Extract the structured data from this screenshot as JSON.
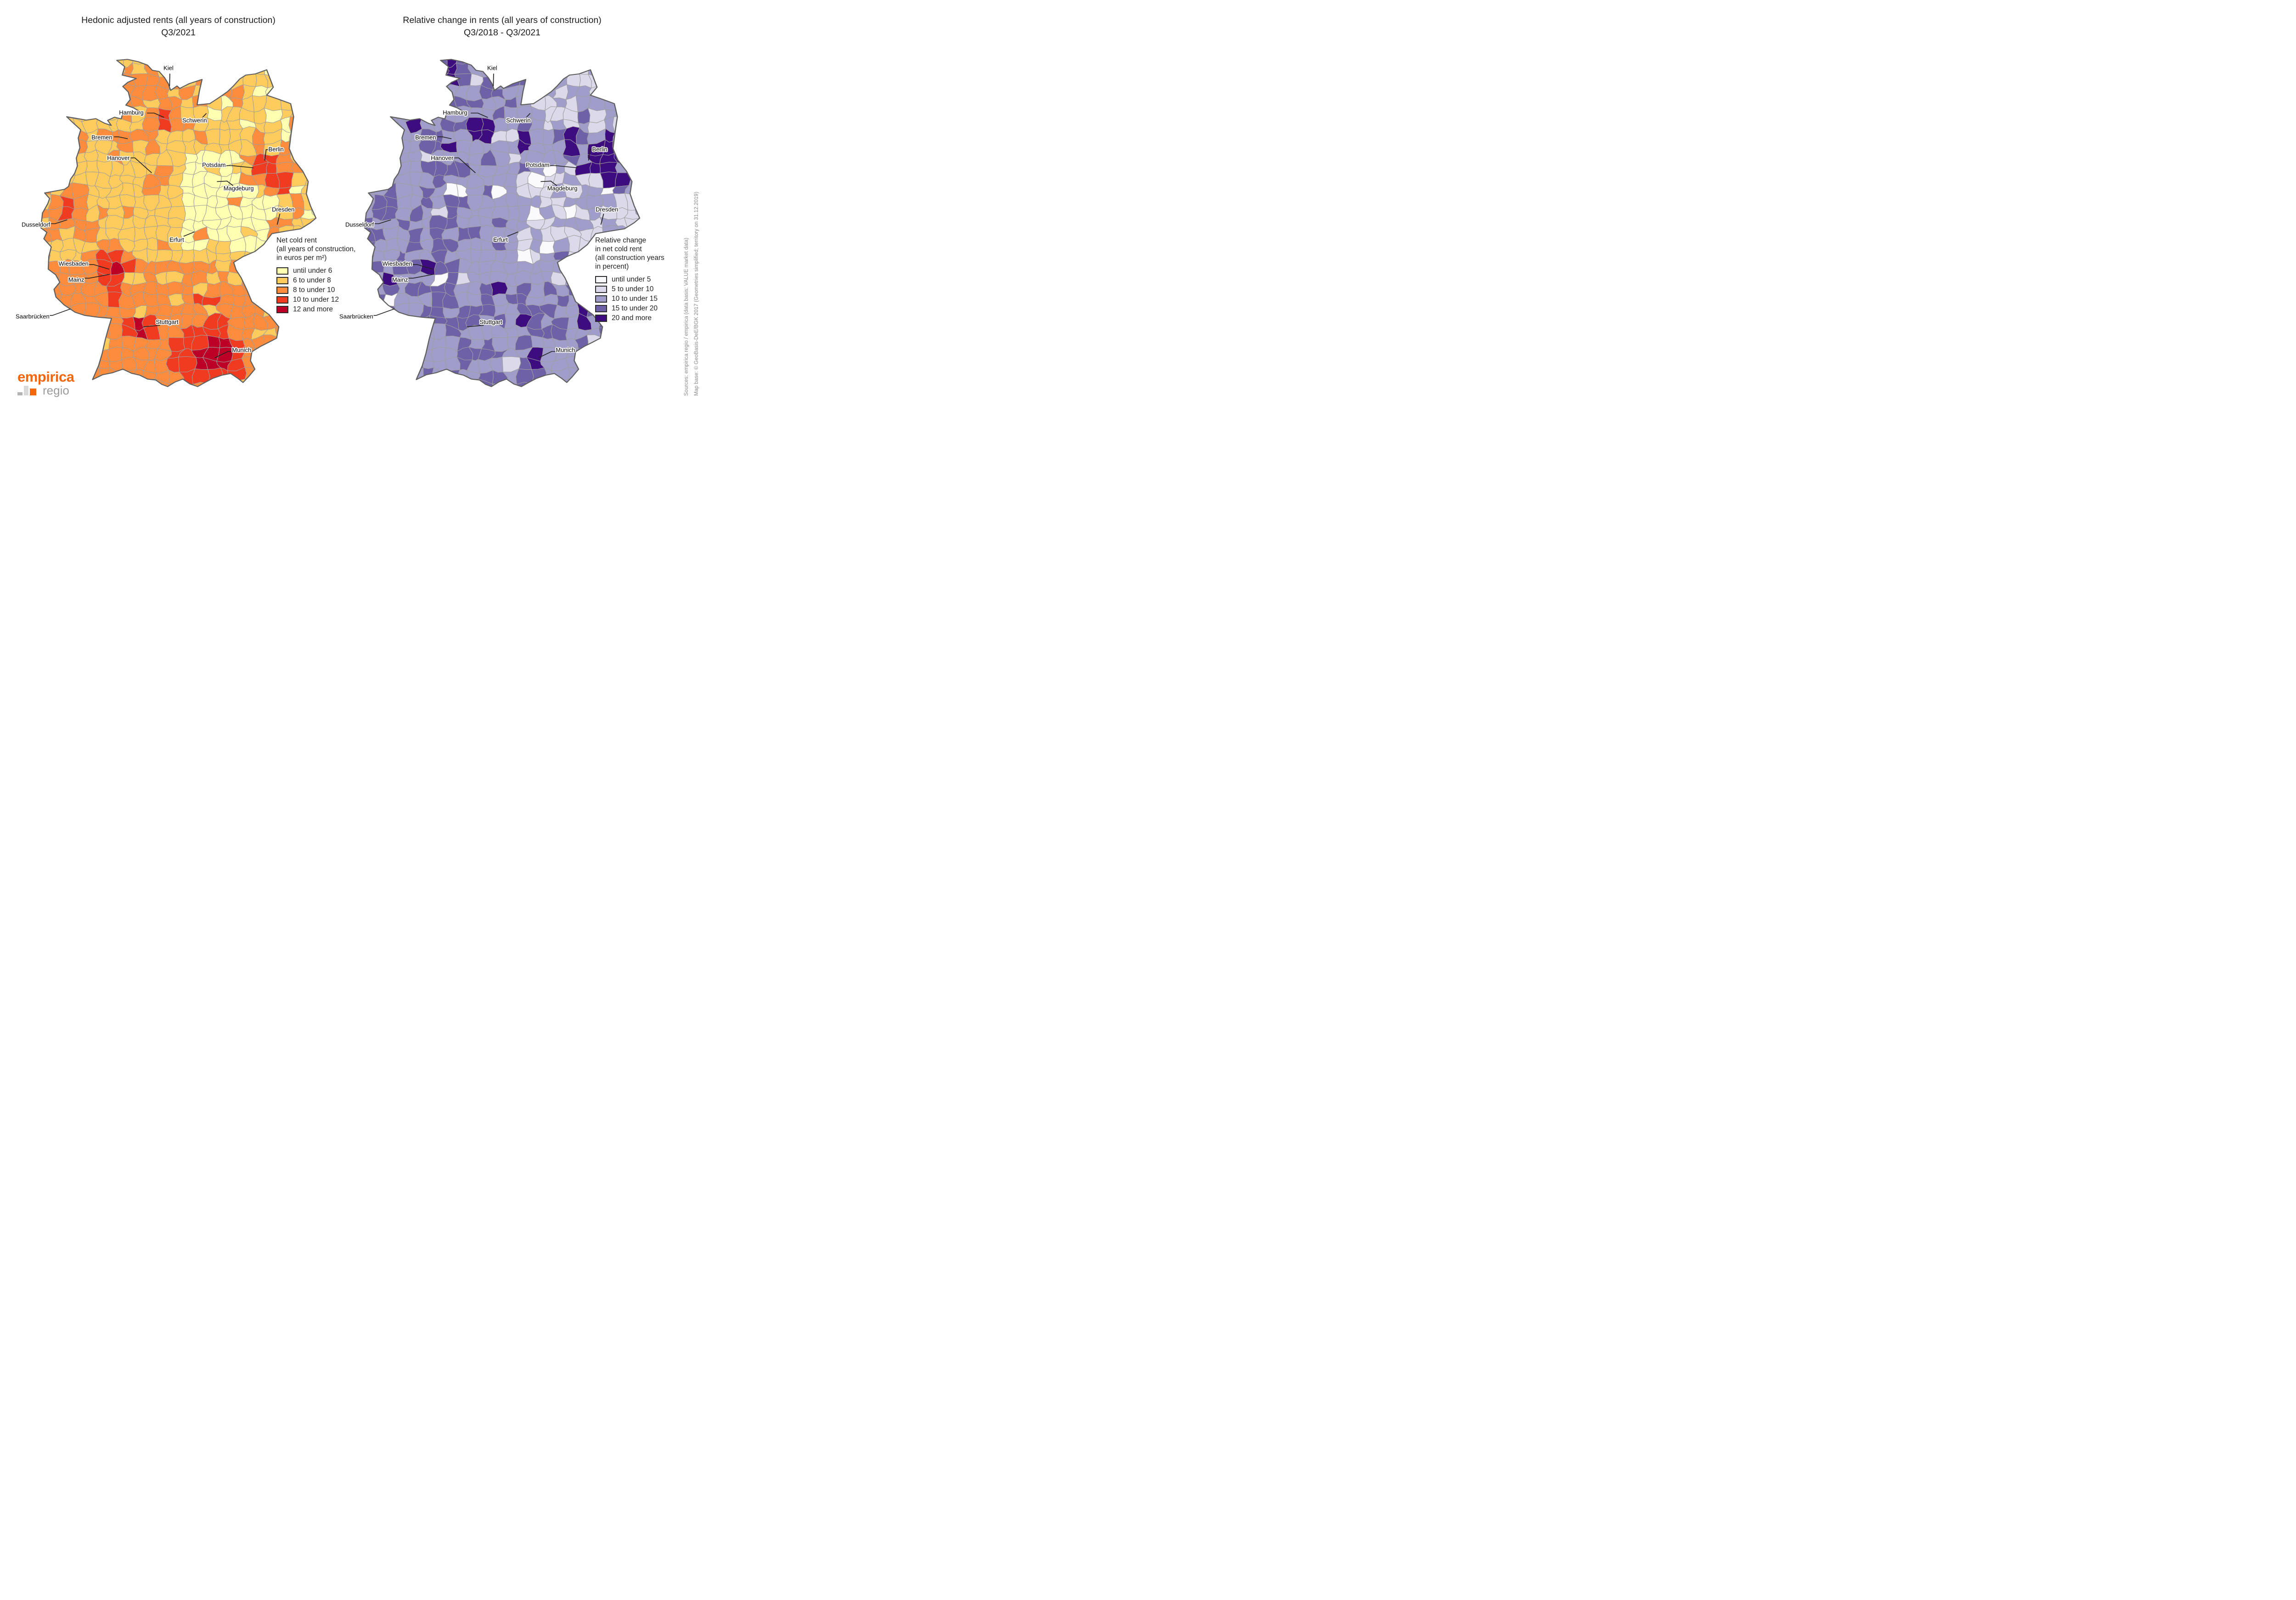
{
  "left_map": {
    "title_line1": "Hedonic adjusted rents (all years of construction)",
    "title_line2": "Q3/2021",
    "legend": {
      "title_lines": [
        "Net cold rent",
        "(all years of construction,",
        "in euros per m²)"
      ],
      "classes": [
        {
          "label": "until under 6",
          "color": "#FFFFB2"
        },
        {
          "label": "6 to under 8",
          "color": "#FECC5C"
        },
        {
          "label": "8 to under 10",
          "color": "#FD8D3C"
        },
        {
          "label": "10 to under 12",
          "color": "#F03B20"
        },
        {
          "label": "12 and more",
          "color": "#BD0026"
        }
      ]
    }
  },
  "right_map": {
    "title_line1": "Relative change in rents (all years of construction)",
    "title_line2": "Q3/2018 - Q3/2021",
    "legend": {
      "title_lines": [
        "Relative change",
        "in net cold rent",
        "(all construction years",
        "in percent)"
      ],
      "classes": [
        {
          "label": "until under 5",
          "color": "#FAFAFC"
        },
        {
          "label": "5 to under 10",
          "color": "#DBD9EA"
        },
        {
          "label": "10 to under 15",
          "color": "#A09DCB"
        },
        {
          "label": "15 to under 20",
          "color": "#6E61A8"
        },
        {
          "label": "20 and more",
          "color": "#3D0C7E"
        }
      ]
    }
  },
  "cities": [
    {
      "name": "Kiel",
      "label": [
        46.4,
        6.1
      ],
      "leader": [
        [
          46.9,
          8.4
        ],
        [
          46.8,
          13.6
        ]
      ]
    },
    {
      "name": "Hamburg",
      "label": [
        32.9,
        24.5
      ],
      "leader": [
        [
          38.6,
          24.7
        ],
        [
          41.2,
          24.7
        ],
        [
          44.8,
          26.5
        ]
      ]
    },
    {
      "name": "Schwerin",
      "label": [
        55.9,
        27.7
      ],
      "leader": [
        [
          58.6,
          26.7
        ],
        [
          60.2,
          24.8
        ]
      ]
    },
    {
      "name": "Bremen",
      "label": [
        22.2,
        34.7
      ],
      "leader": [
        [
          26.6,
          34.5
        ],
        [
          28.2,
          34.5
        ],
        [
          31.6,
          35.3
        ]
      ]
    },
    {
      "name": "Berlin",
      "label": [
        85.5,
        39.6
      ],
      "leader": [
        [
          83.2,
          39.8
        ],
        [
          81.9,
          39.8
        ],
        [
          81.4,
          44.3
        ]
      ]
    },
    {
      "name": "Hanover",
      "label": [
        28.2,
        43.2
      ],
      "leader": [
        [
          32.6,
          43.2
        ],
        [
          34.2,
          43.2
        ],
        [
          40.3,
          49.4
        ]
      ]
    },
    {
      "name": "Potsdam",
      "label": [
        62.9,
        46.1
      ],
      "leader": [
        [
          67.4,
          46.4
        ],
        [
          69.4,
          46.4
        ],
        [
          77.3,
          47.3
        ]
      ]
    },
    {
      "name": "Magdeburg",
      "label": [
        71.9,
        55.8
      ],
      "leader": [
        [
          69.9,
          54.7
        ],
        [
          67.7,
          52.8
        ],
        [
          64.0,
          53.0
        ]
      ]
    },
    {
      "name": "Dresden",
      "label": [
        88.1,
        64.5
      ],
      "leader": [
        [
          86.9,
          66.3
        ],
        [
          85.9,
          70.8
        ]
      ]
    },
    {
      "name": "Dusseldorf",
      "label": [
        -1.8,
        70.7
      ],
      "leader": [
        [
          3.4,
          70.4
        ],
        [
          5.2,
          70.4
        ],
        [
          9.6,
          68.8
        ]
      ]
    },
    {
      "name": "Erfurt",
      "label": [
        49.4,
        77.0
      ],
      "leader": [
        [
          51.9,
          75.6
        ],
        [
          55.8,
          73.8
        ]
      ]
    },
    {
      "name": "Wiesbaden",
      "label": [
        11.9,
        86.9
      ],
      "leader": [
        [
          17.2,
          87.3
        ],
        [
          19.2,
          87.3
        ],
        [
          24.9,
          89.2
        ]
      ]
    },
    {
      "name": "Mainz",
      "label": [
        12.9,
        93.5
      ],
      "leader": [
        [
          15.9,
          92.9
        ],
        [
          17.7,
          92.9
        ],
        [
          25.1,
          91.3
        ]
      ]
    },
    {
      "name": "Saarbrücken",
      "label": [
        -3.0,
        108.7
      ],
      "leader": [
        [
          2.4,
          108.3
        ],
        [
          4.2,
          108.3
        ],
        [
          10.8,
          105.6
        ]
      ]
    },
    {
      "name": "Stuttgart",
      "label": [
        45.9,
        111.0
      ],
      "leader": [
        [
          43.3,
          112.4
        ],
        [
          37.2,
          113.0
        ]
      ]
    },
    {
      "name": "Munich",
      "label": [
        73.0,
        122.5
      ],
      "leader": [
        [
          69.7,
          123.2
        ],
        [
          68.0,
          123.2
        ],
        [
          63.2,
          125.8
        ]
      ]
    }
  ],
  "sources": {
    "line1": "Sources: empirica regio / empirica (data basis: VALUE market data)",
    "line2": "Map base: © GeoBasis-DeE/BGK 2017 (Geometries simplified; territory on 31.12.2019)"
  },
  "logo": {
    "brand": "empirica",
    "sub": "regio",
    "brand_color": "#F2670C",
    "sub_color": "#9B9B9B",
    "bar_colors": [
      "#B4B4B4",
      "#D9D9D9",
      "#F2670C"
    ]
  },
  "map_style": {
    "sea": "#FFFFFF",
    "outline_color": "#5E5E5E",
    "district_border": "#9E9E9E",
    "leader_color": "#222222",
    "label_color": "#000000"
  }
}
